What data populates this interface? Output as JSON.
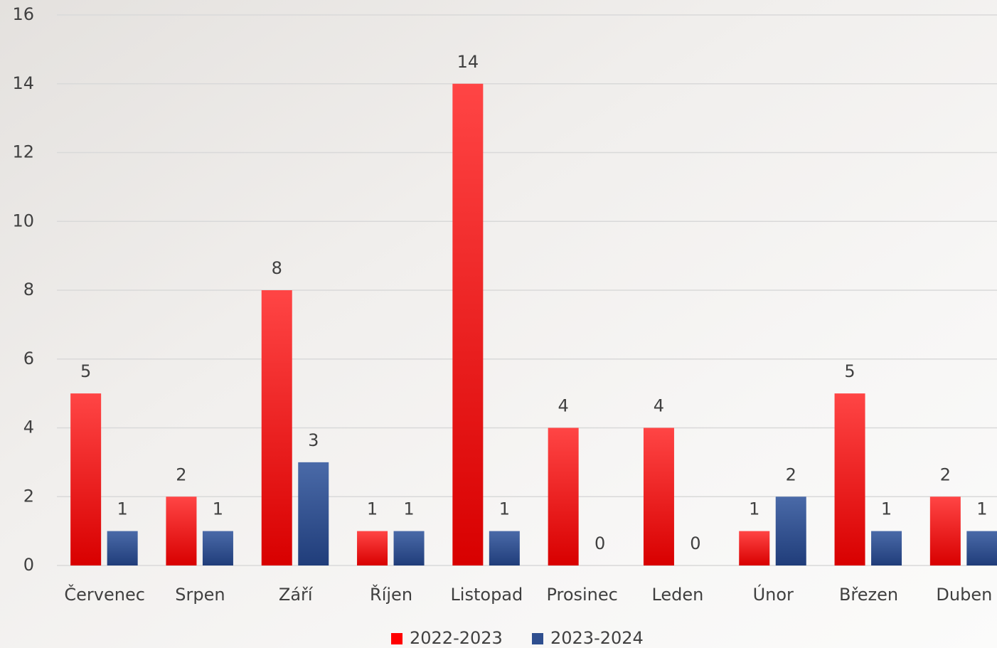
{
  "chart_data": {
    "type": "bar",
    "categories": [
      "Červenec",
      "Srpen",
      "Září",
      "Říjen",
      "Listopad",
      "Prosinec",
      "Leden",
      "Únor",
      "Březen",
      "Duben"
    ],
    "series": [
      {
        "name": "2022-2023",
        "color": "#ff0000",
        "values": [
          5,
          2,
          8,
          1,
          14,
          4,
          4,
          1,
          5,
          2
        ]
      },
      {
        "name": "2023-2024",
        "color": "#2f4f8f",
        "values": [
          1,
          1,
          3,
          1,
          1,
          0,
          0,
          2,
          1,
          1
        ]
      }
    ],
    "ylim": [
      0,
      16
    ],
    "yticks": [
      0,
      2,
      4,
      6,
      8,
      10,
      12,
      14,
      16
    ],
    "grid": true,
    "legend": "bottom"
  }
}
